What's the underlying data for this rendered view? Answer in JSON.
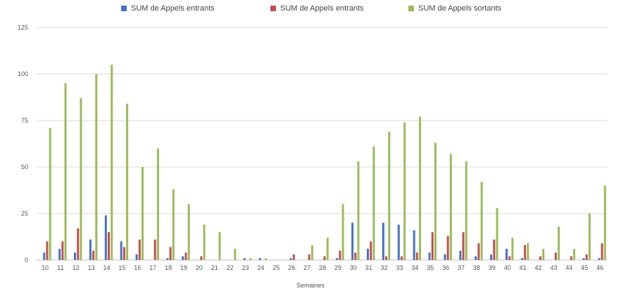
{
  "chart_data": {
    "type": "bar",
    "title": "",
    "xlabel": "Semaines",
    "ylabel": "",
    "ylim": [
      0,
      125
    ],
    "yticks": [
      0,
      25,
      50,
      75,
      100,
      125
    ],
    "grid": true,
    "legend_position": "top",
    "categories": [
      "10",
      "11",
      "12",
      "13",
      "14",
      "15",
      "16",
      "17",
      "18",
      "19",
      "20",
      "21",
      "22",
      "23",
      "24",
      "25",
      "26",
      "27",
      "28",
      "29",
      "30",
      "31",
      "32",
      "33",
      "34",
      "35",
      "36",
      "37",
      "38",
      "39",
      "40",
      "41",
      "42",
      "43",
      "44",
      "45",
      "46"
    ],
    "series": [
      {
        "name": "SUM de Appels entrants",
        "color": "#4472c4",
        "values": [
          4,
          6,
          4,
          11,
          24,
          10,
          3,
          0,
          1,
          2,
          0,
          0,
          0,
          1,
          1,
          0,
          1,
          0,
          0,
          1,
          20,
          6,
          20,
          19,
          16,
          4,
          3,
          5,
          2,
          3,
          6,
          1,
          0,
          0,
          0,
          1,
          1
        ]
      },
      {
        "name": "SUM de Appels entrants",
        "color": "#c0504d",
        "values": [
          10,
          10,
          17,
          5,
          15,
          7,
          11,
          11,
          7,
          4,
          2,
          0,
          0,
          0,
          0,
          0,
          3,
          3,
          2,
          5,
          4,
          10,
          2,
          2,
          4,
          15,
          13,
          15,
          9,
          11,
          2,
          8,
          2,
          4,
          2,
          3,
          9
        ]
      },
      {
        "name": "SUM de Appels sortants",
        "color": "#9bbb59",
        "values": [
          71,
          95,
          87,
          100,
          105,
          84,
          50,
          60,
          38,
          30,
          19,
          15,
          6,
          1,
          1,
          0,
          0,
          8,
          12,
          30,
          53,
          61,
          69,
          74,
          77,
          63,
          57,
          53,
          42,
          28,
          12,
          9,
          6,
          18,
          6,
          25,
          40
        ]
      }
    ]
  }
}
